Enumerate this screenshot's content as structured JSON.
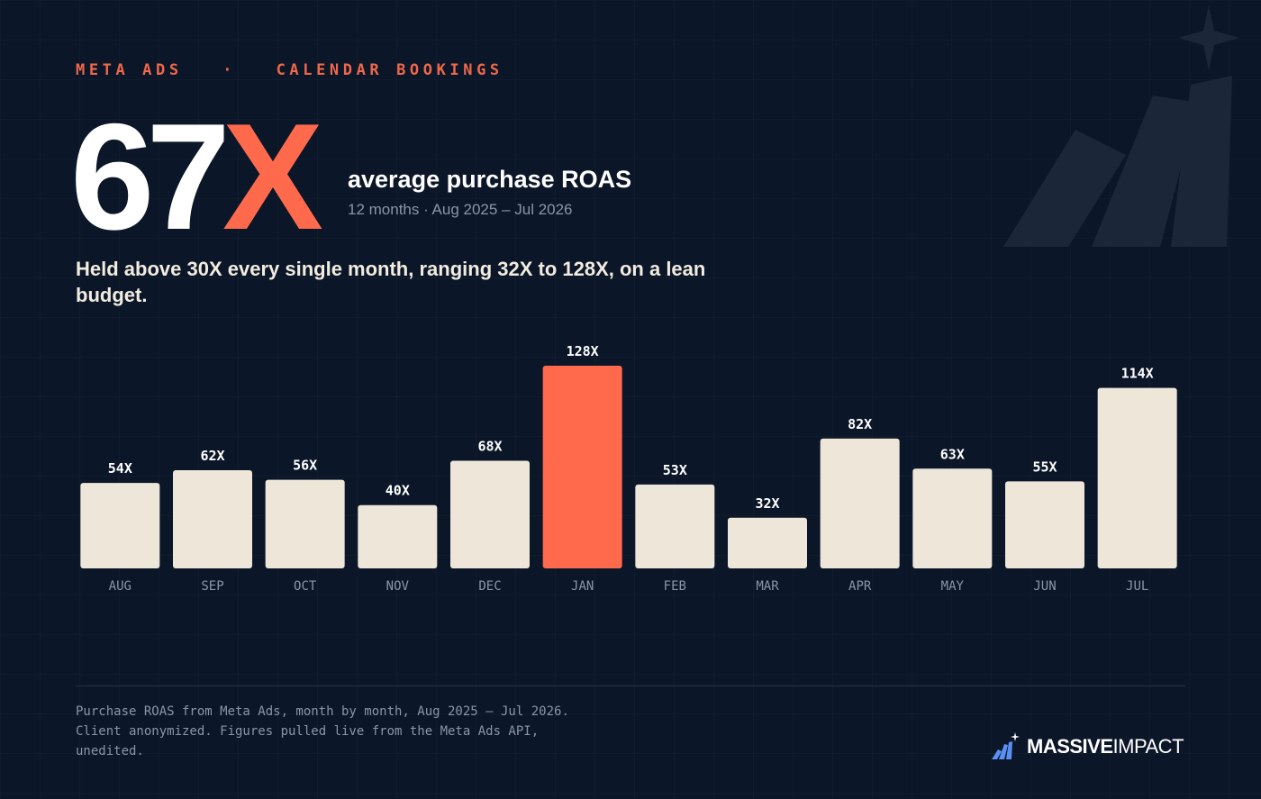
{
  "eyebrow": {
    "left": "META ADS",
    "separator": "·",
    "right": "CALENDAR BOOKINGS"
  },
  "hero": {
    "value": "67",
    "unit": "X",
    "headline": "average purchase ROAS",
    "period": "12 months · Aug 2025 – Jul 2026"
  },
  "summary": "Held above 30X every single month, ranging 32X to 128X, on a lean budget.",
  "chart_data": {
    "type": "bar",
    "title": "",
    "xlabel": "",
    "ylabel": "",
    "ylim": [
      0,
      128
    ],
    "grid": false,
    "categories": [
      "AUG",
      "SEP",
      "OCT",
      "NOV",
      "DEC",
      "JAN",
      "FEB",
      "MAR",
      "APR",
      "MAY",
      "JUN",
      "JUL"
    ],
    "values": [
      54,
      62,
      56,
      40,
      68,
      128,
      53,
      32,
      82,
      63,
      55,
      114
    ],
    "value_labels": [
      "54X",
      "62X",
      "56X",
      "40X",
      "68X",
      "128X",
      "53X",
      "32X",
      "82X",
      "63X",
      "55X",
      "114X"
    ],
    "highlight_category": "JAN",
    "colors": {
      "bar": "#ede6d9",
      "highlight": "#ff6a4d",
      "value_label": "#ffffff",
      "tick_label": "#8a96a8"
    }
  },
  "footnote": "Purchase ROAS from Meta Ads, month by month, Aug 2025 – Jul 2026. Client anonymized. Figures pulled live from the Meta Ads API, unedited.",
  "brand": {
    "strong": "MASSIVE",
    "light": "IMPACT",
    "logo_icon": "bars-star-logo-icon"
  },
  "colors": {
    "background": "#0b1628",
    "accent": "#ff6a4d",
    "muted": "#8a96a8",
    "text": "#ffffff",
    "cream": "#f2ece0"
  }
}
